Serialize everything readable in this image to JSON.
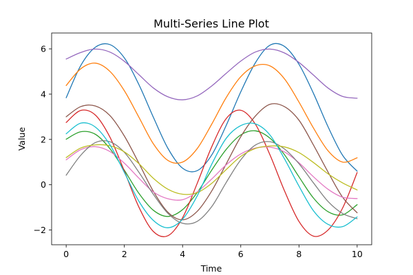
{
  "chart_data": {
    "type": "line",
    "title": "Multi-Series Line Plot",
    "xlabel": "Time",
    "ylabel": "Value",
    "xlim": [
      -0.5,
      10.5
    ],
    "ylim": [
      -2.65,
      6.7
    ],
    "xticks": [
      0,
      2,
      4,
      6,
      8,
      10
    ],
    "yticks": [
      -2,
      0,
      2,
      4,
      6
    ],
    "xtick_labels": [
      "0",
      "2",
      "4",
      "6",
      "8",
      "10"
    ],
    "ytick_labels": [
      "−2",
      "0",
      "2",
      "4",
      "6"
    ],
    "grid": false,
    "x": [
      0,
      0.5,
      1,
      1.5,
      2,
      2.5,
      3,
      3.5,
      4,
      4.5,
      5,
      5.5,
      6,
      6.5,
      7,
      7.5,
      8,
      8.5,
      9,
      9.5,
      10
    ],
    "series": [
      {
        "color": "#1f77b4",
        "values": [
          3.84,
          5.26,
          6.07,
          6.19,
          5.6,
          4.42,
          2.97,
          1.6,
          0.73,
          0.62,
          1.31,
          2.62,
          4.1,
          5.38,
          6.16,
          6.11,
          5.32,
          4.03,
          2.56,
          1.3,
          0.6
        ]
      },
      {
        "color": "#ff7f0e",
        "values": [
          4.38,
          5.12,
          5.37,
          5.01,
          4.15,
          2.98,
          1.8,
          1.07,
          1.0,
          1.59,
          2.67,
          3.85,
          4.77,
          5.25,
          5.25,
          4.68,
          3.65,
          2.5,
          1.5,
          1.0,
          1.19
        ]
      },
      {
        "color": "#2ca02c",
        "values": [
          2.01,
          2.34,
          2.23,
          1.6,
          0.64,
          -0.38,
          -1.13,
          -1.4,
          -1.1,
          -0.35,
          0.64,
          1.56,
          2.2,
          2.38,
          2.06,
          1.33,
          0.35,
          -0.59,
          -1.19,
          -1.33,
          -0.88
        ]
      },
      {
        "color": "#d62728",
        "values": [
          2.75,
          3.28,
          3.08,
          2.11,
          0.6,
          -0.99,
          -2.07,
          -2.25,
          -1.46,
          0.05,
          1.67,
          2.92,
          3.29,
          2.68,
          1.33,
          -0.26,
          -1.62,
          -2.27,
          -2.0,
          -1.03,
          0.54
        ]
      },
      {
        "color": "#9467bd",
        "values": [
          5.55,
          5.84,
          5.99,
          5.86,
          5.45,
          4.86,
          4.27,
          3.88,
          3.75,
          3.92,
          4.36,
          4.92,
          5.46,
          5.86,
          5.99,
          5.82,
          5.4,
          4.84,
          4.27,
          3.9,
          3.82
        ]
      },
      {
        "color": "#8c564b",
        "values": [
          3.0,
          3.45,
          3.48,
          3.06,
          2.15,
          0.95,
          -0.3,
          -1.22,
          -1.55,
          -1.18,
          -0.28,
          0.92,
          2.12,
          3.03,
          3.55,
          3.45,
          2.85,
          1.75,
          0.56,
          -0.55,
          -1.24
        ]
      },
      {
        "color": "#e377c2",
        "values": [
          1.1,
          1.55,
          1.68,
          1.47,
          0.95,
          0.29,
          -0.32,
          -0.62,
          -0.66,
          -0.32,
          0.25,
          0.88,
          1.36,
          1.62,
          1.66,
          1.45,
          0.97,
          0.35,
          -0.2,
          -0.55,
          -0.61
        ]
      },
      {
        "color": "#7f7f7f",
        "values": [
          0.42,
          1.3,
          1.86,
          1.9,
          1.43,
          0.55,
          -0.43,
          -1.27,
          -1.7,
          -1.62,
          -0.97,
          0.1,
          1.1,
          1.75,
          1.9,
          1.58,
          0.93,
          0.08,
          -0.74,
          -1.27,
          -1.5
        ]
      },
      {
        "color": "#bcbd22",
        "values": [
          1.2,
          1.62,
          1.76,
          1.72,
          1.45,
          0.93,
          0.28,
          -0.2,
          -0.42,
          -0.35,
          0.06,
          0.67,
          1.25,
          1.6,
          1.71,
          1.67,
          1.42,
          0.98,
          0.48,
          0.08,
          -0.23
        ]
      },
      {
        "color": "#17becf",
        "values": [
          2.25,
          2.72,
          2.55,
          1.77,
          0.54,
          -0.73,
          -1.58,
          -1.9,
          -1.52,
          -0.5,
          0.9,
          2.05,
          2.61,
          2.69,
          2.2,
          1.15,
          -0.06,
          -1.15,
          -1.75,
          -1.85,
          -1.42
        ]
      }
    ]
  }
}
